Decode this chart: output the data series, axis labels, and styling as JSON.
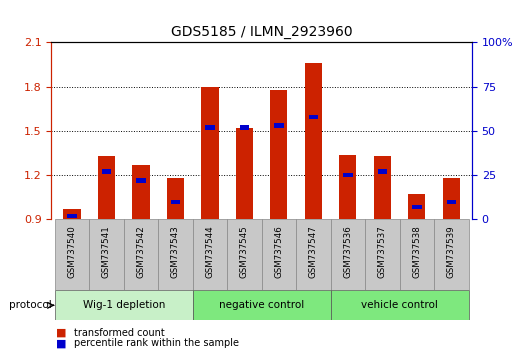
{
  "title": "GDS5185 / ILMN_2923960",
  "samples": [
    "GSM737540",
    "GSM737541",
    "GSM737542",
    "GSM737543",
    "GSM737544",
    "GSM737545",
    "GSM737546",
    "GSM737547",
    "GSM737536",
    "GSM737537",
    "GSM737538",
    "GSM737539"
  ],
  "transformed_counts": [
    0.97,
    1.33,
    1.27,
    1.18,
    1.8,
    1.52,
    1.78,
    1.96,
    1.34,
    1.33,
    1.07,
    1.18
  ],
  "percentile_ranks": [
    2,
    27,
    22,
    10,
    52,
    52,
    53,
    58,
    25,
    27,
    7,
    10
  ],
  "groups": [
    {
      "label": "Wig-1 depletion",
      "start": 0,
      "end": 4,
      "color": "#c8f0c8"
    },
    {
      "label": "negative control",
      "start": 4,
      "end": 8,
      "color": "#7ee87e"
    },
    {
      "label": "vehicle control",
      "start": 8,
      "end": 12,
      "color": "#7ee87e"
    }
  ],
  "ylim_left": [
    0.9,
    2.1
  ],
  "ylim_right": [
    0,
    100
  ],
  "yticks_left": [
    0.9,
    1.2,
    1.5,
    1.8,
    2.1
  ],
  "yticks_right": [
    0,
    25,
    50,
    75,
    100
  ],
  "bar_color": "#cc2200",
  "percentile_color": "#0000cc",
  "bar_bottom": 0.9,
  "grid_color": "black",
  "bar_width": 0.5,
  "sample_label_bg": "#c8c8c8",
  "sample_label_border": "#888888",
  "plot_bg": "#ffffff"
}
